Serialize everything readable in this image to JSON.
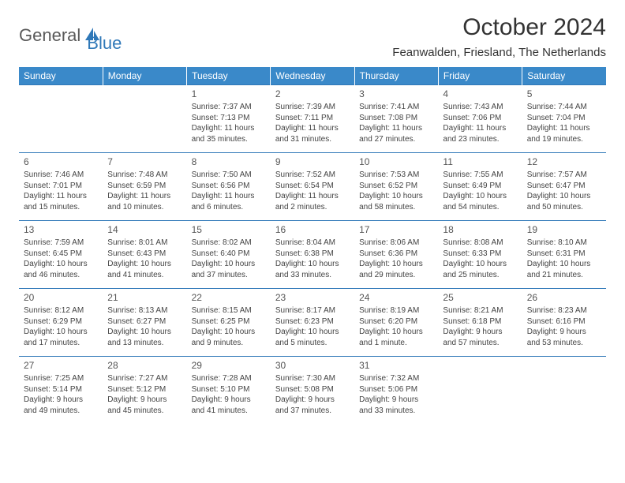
{
  "logo": {
    "text1": "General",
    "text2": "Blue"
  },
  "title": "October 2024",
  "location": "Feanwalden, Friesland, The Netherlands",
  "colors": {
    "header_bg": "#3a89c9",
    "header_text": "#ffffff",
    "border": "#2f78b8",
    "body_text": "#444444",
    "logo_accent": "#2f78b8",
    "logo_gray": "#5a5a5a"
  },
  "day_headers": [
    "Sunday",
    "Monday",
    "Tuesday",
    "Wednesday",
    "Thursday",
    "Friday",
    "Saturday"
  ],
  "first_weekday_index": 2,
  "days": [
    {
      "n": 1,
      "sunrise": "7:37 AM",
      "sunset": "7:13 PM",
      "daylight": "11 hours and 35 minutes."
    },
    {
      "n": 2,
      "sunrise": "7:39 AM",
      "sunset": "7:11 PM",
      "daylight": "11 hours and 31 minutes."
    },
    {
      "n": 3,
      "sunrise": "7:41 AM",
      "sunset": "7:08 PM",
      "daylight": "11 hours and 27 minutes."
    },
    {
      "n": 4,
      "sunrise": "7:43 AM",
      "sunset": "7:06 PM",
      "daylight": "11 hours and 23 minutes."
    },
    {
      "n": 5,
      "sunrise": "7:44 AM",
      "sunset": "7:04 PM",
      "daylight": "11 hours and 19 minutes."
    },
    {
      "n": 6,
      "sunrise": "7:46 AM",
      "sunset": "7:01 PM",
      "daylight": "11 hours and 15 minutes."
    },
    {
      "n": 7,
      "sunrise": "7:48 AM",
      "sunset": "6:59 PM",
      "daylight": "11 hours and 10 minutes."
    },
    {
      "n": 8,
      "sunrise": "7:50 AM",
      "sunset": "6:56 PM",
      "daylight": "11 hours and 6 minutes."
    },
    {
      "n": 9,
      "sunrise": "7:52 AM",
      "sunset": "6:54 PM",
      "daylight": "11 hours and 2 minutes."
    },
    {
      "n": 10,
      "sunrise": "7:53 AM",
      "sunset": "6:52 PM",
      "daylight": "10 hours and 58 minutes."
    },
    {
      "n": 11,
      "sunrise": "7:55 AM",
      "sunset": "6:49 PM",
      "daylight": "10 hours and 54 minutes."
    },
    {
      "n": 12,
      "sunrise": "7:57 AM",
      "sunset": "6:47 PM",
      "daylight": "10 hours and 50 minutes."
    },
    {
      "n": 13,
      "sunrise": "7:59 AM",
      "sunset": "6:45 PM",
      "daylight": "10 hours and 46 minutes."
    },
    {
      "n": 14,
      "sunrise": "8:01 AM",
      "sunset": "6:43 PM",
      "daylight": "10 hours and 41 minutes."
    },
    {
      "n": 15,
      "sunrise": "8:02 AM",
      "sunset": "6:40 PM",
      "daylight": "10 hours and 37 minutes."
    },
    {
      "n": 16,
      "sunrise": "8:04 AM",
      "sunset": "6:38 PM",
      "daylight": "10 hours and 33 minutes."
    },
    {
      "n": 17,
      "sunrise": "8:06 AM",
      "sunset": "6:36 PM",
      "daylight": "10 hours and 29 minutes."
    },
    {
      "n": 18,
      "sunrise": "8:08 AM",
      "sunset": "6:33 PM",
      "daylight": "10 hours and 25 minutes."
    },
    {
      "n": 19,
      "sunrise": "8:10 AM",
      "sunset": "6:31 PM",
      "daylight": "10 hours and 21 minutes."
    },
    {
      "n": 20,
      "sunrise": "8:12 AM",
      "sunset": "6:29 PM",
      "daylight": "10 hours and 17 minutes."
    },
    {
      "n": 21,
      "sunrise": "8:13 AM",
      "sunset": "6:27 PM",
      "daylight": "10 hours and 13 minutes."
    },
    {
      "n": 22,
      "sunrise": "8:15 AM",
      "sunset": "6:25 PM",
      "daylight": "10 hours and 9 minutes."
    },
    {
      "n": 23,
      "sunrise": "8:17 AM",
      "sunset": "6:23 PM",
      "daylight": "10 hours and 5 minutes."
    },
    {
      "n": 24,
      "sunrise": "8:19 AM",
      "sunset": "6:20 PM",
      "daylight": "10 hours and 1 minute."
    },
    {
      "n": 25,
      "sunrise": "8:21 AM",
      "sunset": "6:18 PM",
      "daylight": "9 hours and 57 minutes."
    },
    {
      "n": 26,
      "sunrise": "8:23 AM",
      "sunset": "6:16 PM",
      "daylight": "9 hours and 53 minutes."
    },
    {
      "n": 27,
      "sunrise": "7:25 AM",
      "sunset": "5:14 PM",
      "daylight": "9 hours and 49 minutes."
    },
    {
      "n": 28,
      "sunrise": "7:27 AM",
      "sunset": "5:12 PM",
      "daylight": "9 hours and 45 minutes."
    },
    {
      "n": 29,
      "sunrise": "7:28 AM",
      "sunset": "5:10 PM",
      "daylight": "9 hours and 41 minutes."
    },
    {
      "n": 30,
      "sunrise": "7:30 AM",
      "sunset": "5:08 PM",
      "daylight": "9 hours and 37 minutes."
    },
    {
      "n": 31,
      "sunrise": "7:32 AM",
      "sunset": "5:06 PM",
      "daylight": "9 hours and 33 minutes."
    }
  ],
  "labels": {
    "sunrise": "Sunrise: ",
    "sunset": "Sunset: ",
    "daylight": "Daylight: "
  }
}
